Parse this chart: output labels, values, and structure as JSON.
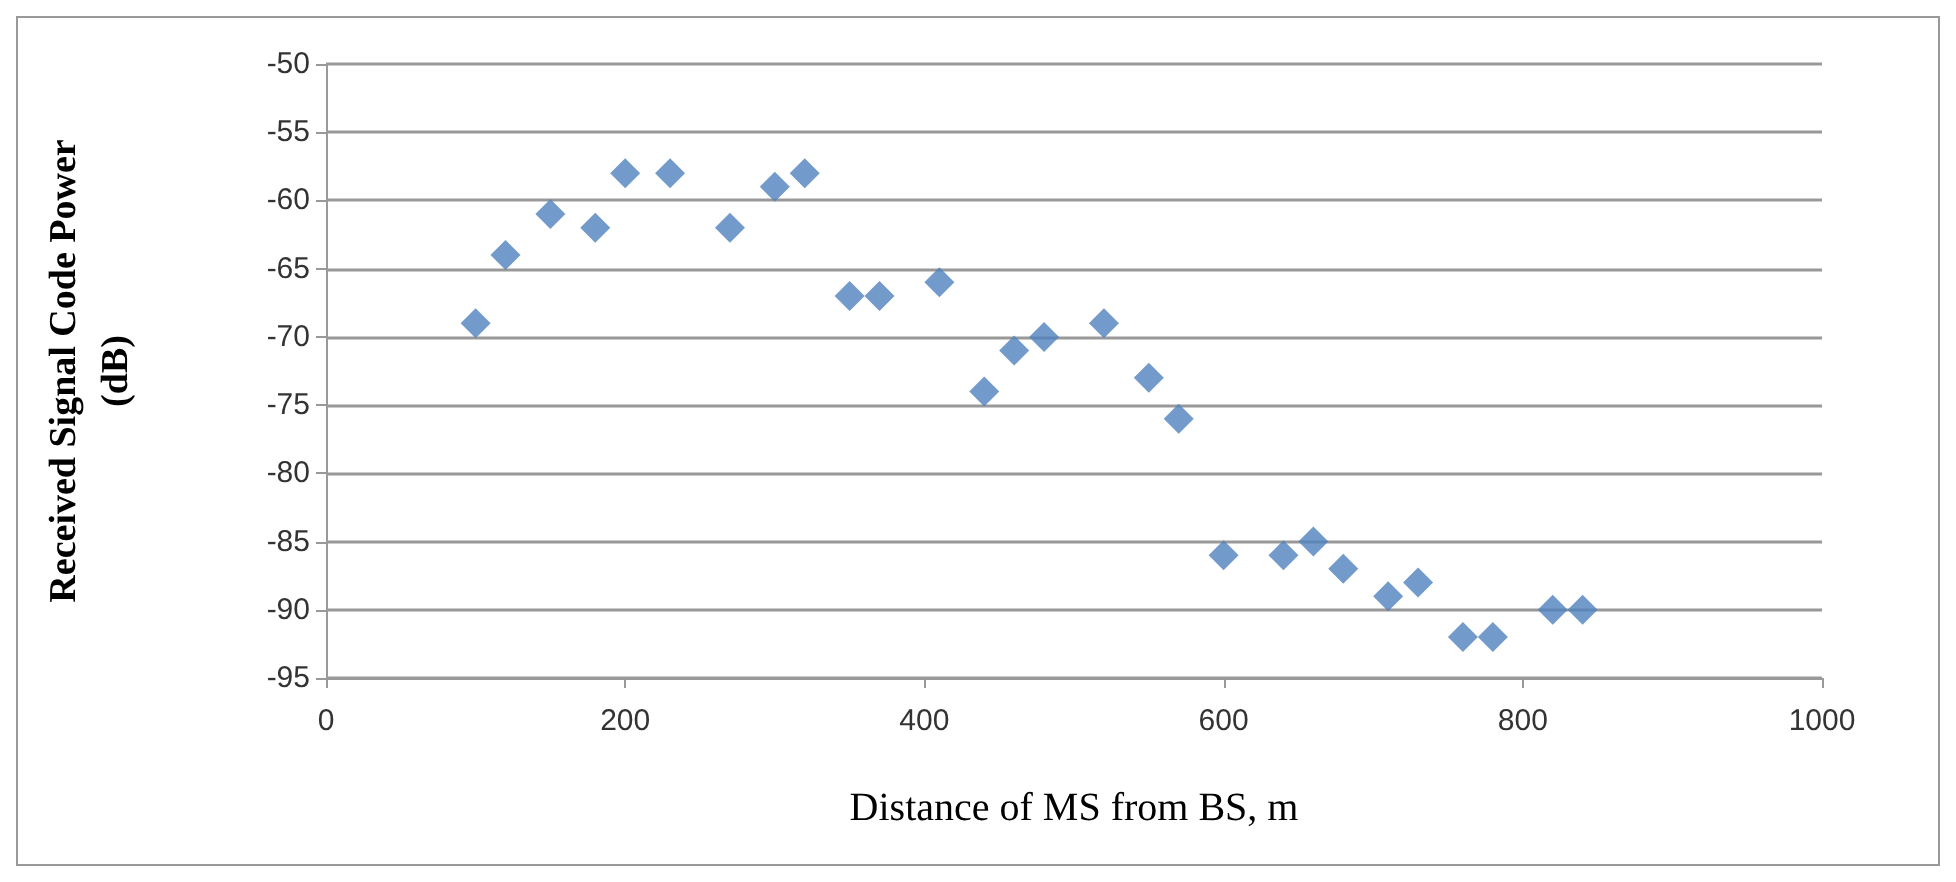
{
  "chart_data": {
    "type": "scatter",
    "xlabel": "Distance of MS from BS, m",
    "ylabel": "Received Signal Code Power\n(dB)",
    "x": [
      100,
      120,
      150,
      180,
      200,
      230,
      270,
      300,
      320,
      350,
      370,
      410,
      440,
      460,
      480,
      520,
      550,
      570,
      600,
      640,
      660,
      680,
      710,
      730,
      760,
      780,
      820,
      840
    ],
    "series": [
      {
        "color": "#4f81bd",
        "values": [
          -69,
          -64,
          -61,
          -62,
          -58,
          -58,
          -62,
          -59,
          -58,
          -67,
          -67,
          -66,
          -74,
          -71,
          -70,
          -69,
          -73,
          -76,
          -86,
          -86,
          -85,
          -87,
          -89,
          -88,
          -92,
          -92,
          -90,
          -90
        ]
      }
    ],
    "xlim": [
      0,
      1000
    ],
    "xticks": [
      0,
      200,
      400,
      600,
      800,
      1000
    ],
    "ylim": [
      -95,
      -50
    ],
    "yticks": [
      -95,
      -90,
      -85,
      -80,
      -75,
      -70,
      -65,
      -60,
      -55,
      -50
    ],
    "grid": "y",
    "marker": "diamond"
  }
}
